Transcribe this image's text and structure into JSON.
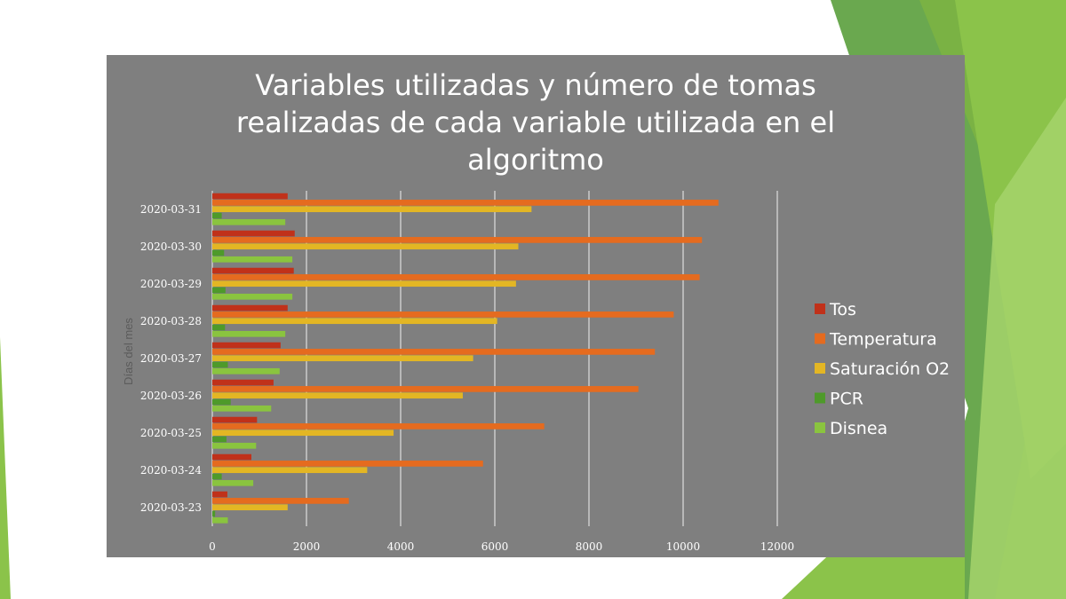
{
  "chart_data": {
    "type": "bar",
    "orientation": "horizontal",
    "title_lines": [
      "Variables utilizadas y número de tomas",
      "realizadas de cada variable utilizada en el",
      "algoritmo"
    ],
    "ylabel": "Días del mes",
    "xlabel": "",
    "xlim": [
      0,
      12000
    ],
    "xticks": [
      "0",
      "2000",
      "4000",
      "6000",
      "8000",
      "10000",
      "12000"
    ],
    "categories": [
      "2020-03-31",
      "2020-03-30",
      "2020-03-29",
      "2020-03-28",
      "2020-03-27",
      "2020-03-26",
      "2020-03-25",
      "2020-03-24",
      "2020-03-23"
    ],
    "series": [
      {
        "name": "Tos",
        "color": "#c0311a",
        "values": [
          1600,
          1750,
          1730,
          1600,
          1450,
          1300,
          950,
          830,
          320
        ]
      },
      {
        "name": "Temperatura",
        "color": "#e56b1f",
        "values": [
          10750,
          10400,
          10350,
          9800,
          9400,
          9050,
          7050,
          5750,
          2900
        ]
      },
      {
        "name": "Saturación O2",
        "color": "#e3b624",
        "values": [
          6780,
          6500,
          6450,
          6050,
          5540,
          5320,
          3850,
          3290,
          1600
        ]
      },
      {
        "name": "PCR",
        "color": "#4e9a2a",
        "values": [
          200,
          250,
          280,
          270,
          330,
          390,
          300,
          200,
          60
        ]
      },
      {
        "name": "Disnea",
        "color": "#8ac43f",
        "values": [
          1550,
          1700,
          1700,
          1550,
          1430,
          1250,
          930,
          870,
          330
        ]
      }
    ],
    "grid": "vertical",
    "legend_position": "right"
  }
}
